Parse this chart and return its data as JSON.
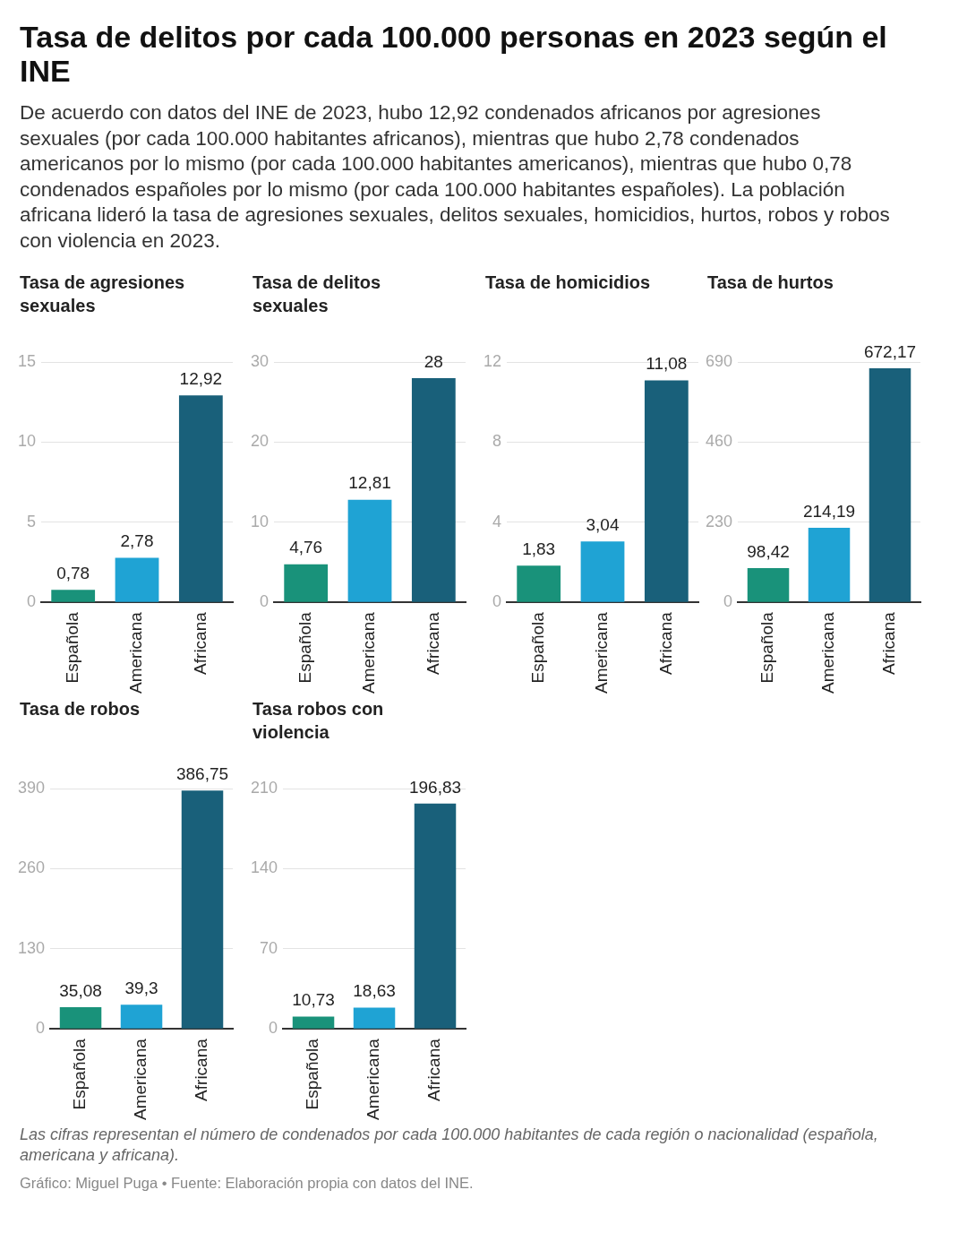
{
  "chart_data": [
    {
      "type": "other",
      "title": "Tasa de delitos por cada 100.000 personas en 2023 según el INE",
      "subtitle": "De acuerdo con datos del INE de 2023, hubo 12,92 condenados africanos por agresiones sexuales (por cada 100.000 habitantes africanos), mientras que hubo 2,78 condenados americanos por lo mismo (por cada 100.000 habitantes americanos), mientras que hubo 0,78 condenados españoles por lo mismo (por cada 100.000 habitantes españoles). La población africana lideró la tasa de agresiones sexuales, delitos sexuales, homicidios, hurtos, robos y robos con violencia en 2023."
    },
    {
      "type": "bar",
      "title": "Tasa de agresiones sexuales",
      "categories": [
        "Española",
        "Americana",
        "Africana"
      ],
      "values": [
        0.78,
        2.78,
        12.92
      ],
      "value_labels": [
        "0,78",
        "2,78",
        "12,92"
      ],
      "colors": [
        "#19927a",
        "#1fa3d4",
        "#19607a"
      ],
      "ylim": [
        0,
        15
      ],
      "yticks": [
        0,
        5,
        10,
        15
      ],
      "grid": "y",
      "legend": false
    },
    {
      "type": "bar",
      "title": "Tasa de delitos sexuales",
      "categories": [
        "Española",
        "Americana",
        "Africana"
      ],
      "values": [
        4.76,
        12.81,
        28
      ],
      "value_labels": [
        "4,76",
        "12,81",
        "28"
      ],
      "colors": [
        "#19927a",
        "#1fa3d4",
        "#19607a"
      ],
      "ylim": [
        0,
        30
      ],
      "yticks": [
        0,
        10,
        20,
        30
      ],
      "grid": "y",
      "legend": false
    },
    {
      "type": "bar",
      "title": "Tasa de homicidios",
      "categories": [
        "Española",
        "Americana",
        "Africana"
      ],
      "values": [
        1.83,
        3.04,
        11.08
      ],
      "value_labels": [
        "1,83",
        "3,04",
        "11,08"
      ],
      "colors": [
        "#19927a",
        "#1fa3d4",
        "#19607a"
      ],
      "ylim": [
        0,
        12
      ],
      "yticks": [
        0,
        4,
        8,
        12
      ],
      "grid": "y",
      "legend": false
    },
    {
      "type": "bar",
      "title": "Tasa de hurtos",
      "categories": [
        "Española",
        "Americana",
        "Africana"
      ],
      "values": [
        98.42,
        214.19,
        672.17
      ],
      "value_labels": [
        "98,42",
        "214,19",
        "672,17"
      ],
      "colors": [
        "#19927a",
        "#1fa3d4",
        "#19607a"
      ],
      "ylim": [
        0,
        690
      ],
      "yticks": [
        0,
        230,
        460,
        690
      ],
      "grid": "y",
      "legend": false
    },
    {
      "type": "bar",
      "title": "Tasa de robos",
      "categories": [
        "Española",
        "Americana",
        "Africana"
      ],
      "values": [
        35.08,
        39.3,
        386.75
      ],
      "value_labels": [
        "35,08",
        "39,3",
        "386,75"
      ],
      "colors": [
        "#19927a",
        "#1fa3d4",
        "#19607a"
      ],
      "ylim": [
        0,
        390
      ],
      "yticks": [
        0,
        130,
        260,
        390
      ],
      "grid": "y",
      "legend": false
    },
    {
      "type": "bar",
      "title": "Tasa robos con violencia",
      "categories": [
        "Española",
        "Americana",
        "Africana"
      ],
      "values": [
        10.73,
        18.63,
        196.83
      ],
      "value_labels": [
        "10,73",
        "18,63",
        "196,83"
      ],
      "colors": [
        "#19927a",
        "#1fa3d4",
        "#19607a"
      ],
      "ylim": [
        0,
        210
      ],
      "yticks": [
        0,
        70,
        140,
        210
      ],
      "grid": "y",
      "legend": false
    },
    {
      "type": "other",
      "annotations": [
        "Las cifras representan el número de condenados por cada 100.000 habitantes de cada región o nacionalidad (española, americana y africana).",
        "Gráfico: Miguel Puga • Fuente: Elaboración propia con datos del INE."
      ]
    }
  ]
}
